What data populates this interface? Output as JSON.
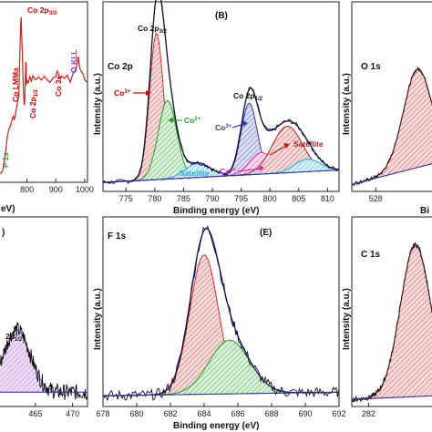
{
  "chart_data": [
    {
      "panel": "A",
      "type": "line",
      "xlim": [
        700,
        1010
      ],
      "xticks": [
        800,
        900,
        1000
      ],
      "x_unit_fragment": "eV)",
      "annotations": [
        {
          "text": "Co 2p3/2",
          "color": "#cc0000"
        },
        {
          "text": "F 1s",
          "color": "#2a9d2a"
        },
        {
          "text": "Co LMMa",
          "color": "#cc0000"
        },
        {
          "text": "Co 2p1/2",
          "color": "#cc0000"
        },
        {
          "text": "Co 3s",
          "color": "#cc0000"
        },
        {
          "text": "O KLL",
          "color": "#9b30d9"
        }
      ],
      "survey": {
        "x": [
          700,
          705,
          710,
          715,
          720,
          725,
          728,
          732,
          736,
          740,
          744,
          748,
          752,
          756,
          760,
          764,
          768,
          772,
          775,
          778,
          780,
          781,
          782,
          784,
          786,
          788,
          790,
          792,
          794,
          796,
          797,
          798,
          800,
          805,
          810,
          815,
          820,
          830,
          840,
          850,
          860,
          870,
          880,
          890,
          900,
          905,
          908,
          912,
          916,
          920,
          930,
          940,
          950,
          960,
          970,
          975,
          978,
          980,
          985,
          990,
          995,
          1000,
          1005,
          1010
        ],
        "y": [
          0.02,
          0.03,
          0.04,
          0.05,
          0.08,
          0.15,
          0.2,
          0.24,
          0.28,
          0.3,
          0.32,
          0.34,
          0.36,
          0.35,
          0.38,
          0.42,
          0.45,
          0.5,
          0.72,
          0.9,
          0.95,
          0.88,
          0.8,
          0.72,
          0.6,
          0.5,
          0.42,
          0.45,
          0.58,
          0.68,
          0.66,
          0.55,
          0.58,
          0.55,
          0.6,
          0.57,
          0.6,
          0.58,
          0.6,
          0.57,
          0.6,
          0.58,
          0.57,
          0.58,
          0.6,
          0.62,
          0.62,
          0.6,
          0.58,
          0.6,
          0.58,
          0.6,
          0.57,
          0.62,
          0.64,
          0.7,
          0.72,
          0.68,
          0.63,
          0.62,
          0.6,
          0.58,
          0.57,
          0.56
        ]
      }
    },
    {
      "panel": "B",
      "type": "line",
      "label": "(B)",
      "title": "Co 2p",
      "xlabel": "Binding energy (eV)",
      "ylabel": "Intensity (a.u.)",
      "xlim": [
        771,
        812
      ],
      "xticks": [
        775,
        780,
        785,
        790,
        795,
        800,
        805,
        810
      ],
      "ylim": [
        0,
        1
      ],
      "annotations": [
        {
          "text": "Co 2p3/2",
          "color": "#111111"
        },
        {
          "text": "Co3+",
          "color": "#cc0000"
        },
        {
          "text": "Co2+",
          "color": "#2a9d2a"
        },
        {
          "text": "Satellite",
          "color": "#2aa8d9"
        },
        {
          "text": "Co 2p1/2",
          "color": "#111111"
        },
        {
          "text": "Co3+",
          "color": "#3a3aa8"
        },
        {
          "text": "Co2+",
          "color": "#cc33aa"
        },
        {
          "text": "Satellite",
          "color": "#aa2222"
        }
      ],
      "components": [
        {
          "name": "Co3+",
          "center": 780.3,
          "amp": 0.82,
          "width": 1.2,
          "color": "#cc3333"
        },
        {
          "name": "Co2+",
          "center": 782.2,
          "amp": 0.44,
          "width": 1.6,
          "color": "#2a9d2a"
        },
        {
          "name": "Satellite",
          "center": 787.5,
          "amp": 0.08,
          "width": 2.2,
          "color": "#2aa8d9"
        },
        {
          "name": "Co3+",
          "center": 796.4,
          "amp": 0.4,
          "width": 1.4,
          "color": "#3a3aa8"
        },
        {
          "name": "Co2+",
          "center": 798.5,
          "amp": 0.12,
          "width": 2.0,
          "color": "#cc33aa"
        },
        {
          "name": "Satellite",
          "center": 803.0,
          "amp": 0.26,
          "width": 2.6,
          "color": "#aa2222"
        },
        {
          "name": "Satellite",
          "center": 806.5,
          "amp": 0.07,
          "width": 2.2,
          "color": "#2aa8d9"
        }
      ],
      "baseline": {
        "start": 0.03,
        "end": 0.1
      }
    },
    {
      "panel": "C",
      "type": "line",
      "title": "O 1s",
      "ylabel": "Intensity (a.u.)",
      "xlabel_fragment": "Bi",
      "xlim": [
        526,
        533
      ],
      "xticks": [
        528
      ],
      "components": [
        {
          "center": 531.5,
          "amp": 0.55,
          "width": 1.2,
          "color": "#cc3333"
        }
      ]
    },
    {
      "panel": "D",
      "type": "line",
      "label_fragment": ")",
      "xlim": [
        460,
        472
      ],
      "xticks": [
        465,
        470
      ],
      "annotations": [
        {
          "text": "2p1/2",
          "color": "#111111"
        }
      ],
      "components": [
        {
          "center": 462.5,
          "amp": 0.35,
          "width": 1.8,
          "color": "#aa66cc"
        }
      ]
    },
    {
      "panel": "E",
      "type": "line",
      "label": "(E)",
      "title": "F 1s",
      "xlabel": "Binding energy (eV)",
      "ylabel": "Intensity (a.u.)",
      "xlim": [
        678,
        692
      ],
      "xticks": [
        678,
        680,
        682,
        684,
        686,
        688,
        690,
        692
      ],
      "ylim": [
        0,
        1
      ],
      "components": [
        {
          "center": 684.0,
          "amp": 0.78,
          "width": 0.85,
          "color": "#cc3333"
        },
        {
          "center": 685.5,
          "amp": 0.3,
          "width": 1.2,
          "color": "#2a9d2a"
        }
      ]
    },
    {
      "panel": "F",
      "type": "line",
      "title": "C 1s",
      "ylabel": "Intensity (a.u.)",
      "xlim": [
        281,
        286
      ],
      "xticks": [
        282
      ],
      "components": [
        {
          "center": 284.8,
          "amp": 0.85,
          "width": 0.9,
          "color": "#cc3333"
        }
      ]
    }
  ]
}
